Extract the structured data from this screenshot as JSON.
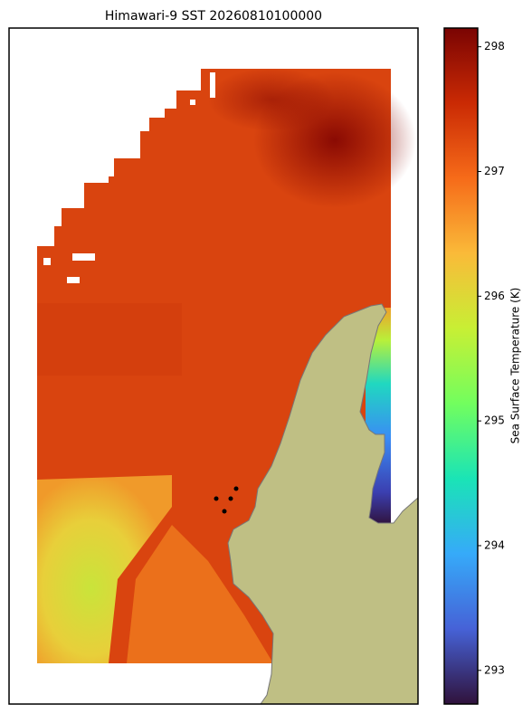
{
  "title": "Himawari-9 SST 20260810100000",
  "colorbar": {
    "label": "Sea Surface Temperature (K)",
    "lim": [
      292.73,
      298.15
    ],
    "ticks": [
      293,
      294,
      295,
      296,
      297,
      298
    ],
    "colormap": [
      "#30123b",
      "#4662d7",
      "#36aaf9",
      "#1ae4b6",
      "#72fe5e",
      "#c8ef34",
      "#faba39",
      "#f66b19",
      "#ca2a04",
      "#7a0403"
    ]
  }
}
